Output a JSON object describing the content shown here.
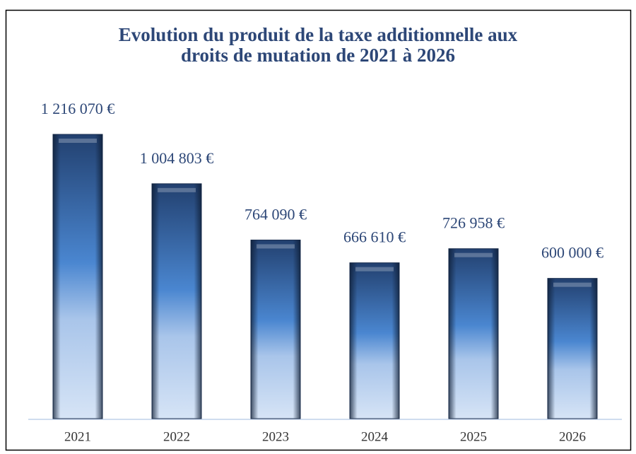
{
  "chart_data": {
    "type": "bar",
    "title": [
      "Evolution du produit de la taxe additionnelle aux",
      "droits de mutation de 2021 à 2026"
    ],
    "categories": [
      "2021",
      "2022",
      "2023",
      "2024",
      "2025",
      "2026"
    ],
    "values": [
      1216070,
      1004803,
      764090,
      666610,
      726958,
      600000
    ],
    "value_labels": [
      "1 216 070 €",
      "1 004 803 €",
      "764 090 €",
      "666 610 €",
      "726 958 €",
      "600 000 €"
    ],
    "color": "#2f5c9e"
  }
}
